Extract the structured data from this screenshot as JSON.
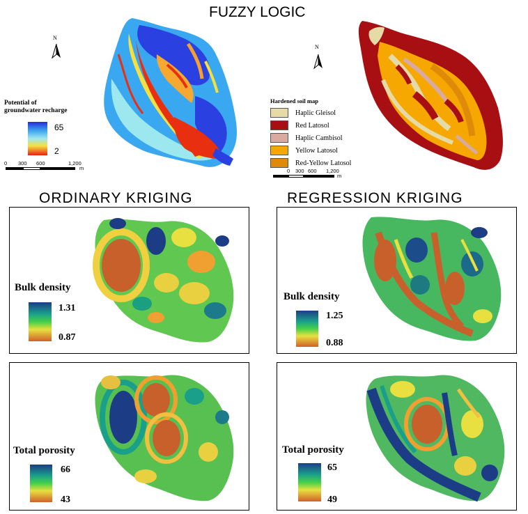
{
  "title": "FUZZY LOGIC",
  "sections": {
    "ordinary": "ORDINARY KRIGING",
    "regression": "REGRESSION KRIGING"
  },
  "north_label": "N",
  "recharge_legend": {
    "title_line1": "Potential of",
    "title_line2": "groundwater recharge",
    "max": "65",
    "min": "2"
  },
  "scale_bar": {
    "ticks": [
      "0",
      "300",
      "600",
      "1,200"
    ],
    "unit": "m"
  },
  "soil_legend": {
    "title": "Hardened soil map",
    "classes": [
      {
        "label": "Haplic Gleisol",
        "color": "#e6dba6"
      },
      {
        "label": "Red Latosol",
        "color": "#a80f12"
      },
      {
        "label": "Haplic Cambisol",
        "color": "#d9aaa0"
      },
      {
        "label": "Yellow Latosol",
        "color": "#f6a800"
      },
      {
        "label": "Red-Yellow Latosol",
        "color": "#e08a0a"
      }
    ]
  },
  "panels": {
    "ok_bulk": {
      "label": "Bulk density",
      "max": "1.31",
      "min": "0.87"
    },
    "rk_bulk": {
      "label": "Bulk density",
      "max": "1.25",
      "min": "0.88"
    },
    "ok_poro": {
      "label": "Total porosity",
      "max": "66",
      "min": "43"
    },
    "rk_poro": {
      "label": "Total porosity",
      "max": "65",
      "min": "49"
    }
  },
  "colors": {
    "red_latosol": "#a80f12",
    "recharge_high": "#2040e0",
    "recharge_low": "#e03010",
    "kriging_high": "#1a3a8a",
    "kriging_low": "#c8502a"
  }
}
